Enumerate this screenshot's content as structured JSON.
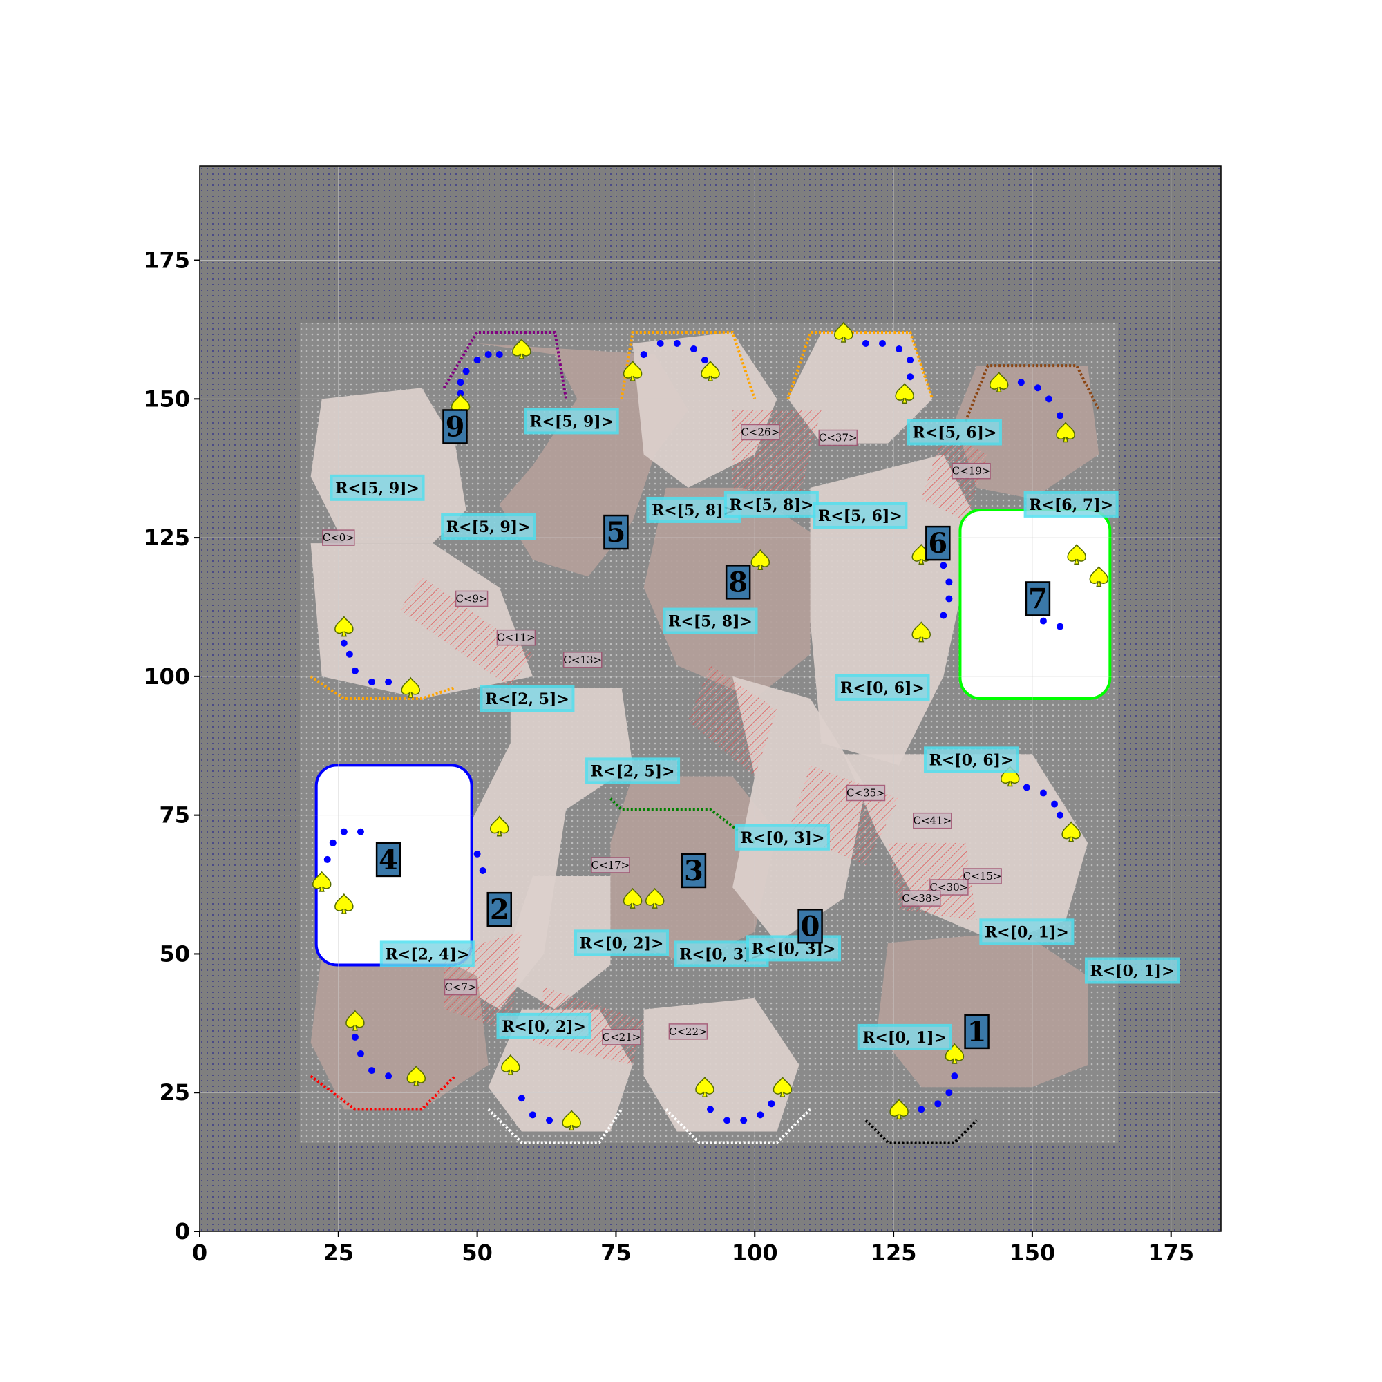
{
  "chart_data": {
    "type": "scatter",
    "title": "",
    "xlabel": "",
    "ylabel": "",
    "xlim": [
      0,
      184
    ],
    "ylim": [
      0,
      192
    ],
    "x_ticks": [
      "0",
      "25",
      "50",
      "75",
      "100",
      "125",
      "150",
      "175"
    ],
    "y_ticks": [
      "0",
      "25",
      "50",
      "75",
      "100",
      "125",
      "150",
      "175"
    ],
    "grid": true,
    "colors": {
      "background": "#7f7f7f",
      "floor": "#b4a09a",
      "floor_light": "#dcd0cc",
      "walkable": "#ffffff",
      "corridor_hatch": "#e05050",
      "label_box": "#86d8e6",
      "number_box": "#3a78a8",
      "marker": "#ffff00",
      "path_dot": "#0000ff",
      "door": "#ff0000"
    },
    "rooms": [
      {
        "id": "0",
        "x": 110,
        "y": 55
      },
      {
        "id": "1",
        "x": 140,
        "y": 36
      },
      {
        "id": "2",
        "x": 54,
        "y": 58
      },
      {
        "id": "3",
        "x": 89,
        "y": 65
      },
      {
        "id": "4",
        "x": 34,
        "y": 67
      },
      {
        "id": "5",
        "x": 75,
        "y": 126
      },
      {
        "id": "6",
        "x": 133,
        "y": 124
      },
      {
        "id": "7",
        "x": 151,
        "y": 114
      },
      {
        "id": "8",
        "x": 97,
        "y": 117
      },
      {
        "id": "9",
        "x": 46,
        "y": 145
      }
    ],
    "region_labels": [
      {
        "text": "R<[5, 9]>",
        "x": 67,
        "y": 146
      },
      {
        "text": "R<[5, 9]>",
        "x": 32,
        "y": 134
      },
      {
        "text": "R<[5, 9]>",
        "x": 52,
        "y": 127
      },
      {
        "text": "R<[5, 6]>",
        "x": 136,
        "y": 144
      },
      {
        "text": "R<[5, 8]>",
        "x": 89,
        "y": 130
      },
      {
        "text": "R<[5, 8]>",
        "x": 103,
        "y": 131
      },
      {
        "text": "R<[5, 6]>",
        "x": 119,
        "y": 129
      },
      {
        "text": "R<[6, 7]>",
        "x": 157,
        "y": 131
      },
      {
        "text": "R<[5, 8]>",
        "x": 92,
        "y": 110
      },
      {
        "text": "R<[2, 5]>",
        "x": 59,
        "y": 96
      },
      {
        "text": "R<[0, 6]>",
        "x": 123,
        "y": 98
      },
      {
        "text": "R<[0, 6]>",
        "x": 139,
        "y": 85
      },
      {
        "text": "R<[2, 5]>",
        "x": 78,
        "y": 83
      },
      {
        "text": "R<[0, 3]>",
        "x": 105,
        "y": 71
      },
      {
        "text": "R<[2, 4]>",
        "x": 41,
        "y": 50
      },
      {
        "text": "R<[0, 2]>",
        "x": 76,
        "y": 52
      },
      {
        "text": "R<[0, 3]>",
        "x": 94,
        "y": 50
      },
      {
        "text": "R<[0, 3]>",
        "x": 107,
        "y": 51
      },
      {
        "text": "R<[0, 1]>",
        "x": 149,
        "y": 54
      },
      {
        "text": "R<[0, 1]>",
        "x": 168,
        "y": 47
      },
      {
        "text": "R<[0, 1]>",
        "x": 127,
        "y": 35
      },
      {
        "text": "R<[0, 2]>",
        "x": 62,
        "y": 37
      }
    ],
    "corridor_labels": [
      {
        "text": "C<0>",
        "x": 25,
        "y": 125
      },
      {
        "text": "C<9>",
        "x": 49,
        "y": 114
      },
      {
        "text": "C<11>",
        "x": 57,
        "y": 107
      },
      {
        "text": "C<13>",
        "x": 69,
        "y": 103
      },
      {
        "text": "C<26>",
        "x": 101,
        "y": 144
      },
      {
        "text": "C<37>",
        "x": 115,
        "y": 143
      },
      {
        "text": "C<19>",
        "x": 139,
        "y": 137
      },
      {
        "text": "C<35>",
        "x": 120,
        "y": 79
      },
      {
        "text": "C<41>",
        "x": 132,
        "y": 74
      },
      {
        "text": "C<15>",
        "x": 141,
        "y": 64
      },
      {
        "text": "C<30>",
        "x": 135,
        "y": 62
      },
      {
        "text": "C<38>",
        "x": 130,
        "y": 60
      },
      {
        "text": "C<7>",
        "x": 47,
        "y": 44
      },
      {
        "text": "C<21>",
        "x": 76,
        "y": 35
      },
      {
        "text": "C<22>",
        "x": 88,
        "y": 36
      },
      {
        "text": "C<17>",
        "x": 74,
        "y": 66
      }
    ],
    "markers": [
      {
        "x": 58,
        "y": 159
      },
      {
        "x": 47,
        "y": 149
      },
      {
        "x": 78,
        "y": 155
      },
      {
        "x": 92,
        "y": 155
      },
      {
        "x": 116,
        "y": 162
      },
      {
        "x": 127,
        "y": 151
      },
      {
        "x": 144,
        "y": 153
      },
      {
        "x": 156,
        "y": 144
      },
      {
        "x": 101,
        "y": 121
      },
      {
        "x": 130,
        "y": 122
      },
      {
        "x": 158,
        "y": 122
      },
      {
        "x": 162,
        "y": 118
      },
      {
        "x": 26,
        "y": 109
      },
      {
        "x": 38,
        "y": 98
      },
      {
        "x": 130,
        "y": 108
      },
      {
        "x": 146,
        "y": 82
      },
      {
        "x": 157,
        "y": 72
      },
      {
        "x": 54,
        "y": 73
      },
      {
        "x": 22,
        "y": 63
      },
      {
        "x": 26,
        "y": 59
      },
      {
        "x": 78,
        "y": 60
      },
      {
        "x": 82,
        "y": 60
      },
      {
        "x": 28,
        "y": 38
      },
      {
        "x": 39,
        "y": 28
      },
      {
        "x": 56,
        "y": 30
      },
      {
        "x": 67,
        "y": 20
      },
      {
        "x": 91,
        "y": 26
      },
      {
        "x": 105,
        "y": 26
      },
      {
        "x": 126,
        "y": 22
      },
      {
        "x": 136,
        "y": 32
      }
    ],
    "path_dots": [
      {
        "x": 54,
        "y": 158
      },
      {
        "x": 52,
        "y": 158
      },
      {
        "x": 50,
        "y": 157
      },
      {
        "x": 48,
        "y": 155
      },
      {
        "x": 47,
        "y": 153
      },
      {
        "x": 47,
        "y": 151
      },
      {
        "x": 80,
        "y": 158
      },
      {
        "x": 83,
        "y": 160
      },
      {
        "x": 86,
        "y": 160
      },
      {
        "x": 89,
        "y": 159
      },
      {
        "x": 91,
        "y": 157
      },
      {
        "x": 120,
        "y": 160
      },
      {
        "x": 123,
        "y": 160
      },
      {
        "x": 126,
        "y": 159
      },
      {
        "x": 128,
        "y": 157
      },
      {
        "x": 128,
        "y": 154
      },
      {
        "x": 148,
        "y": 153
      },
      {
        "x": 151,
        "y": 152
      },
      {
        "x": 153,
        "y": 150
      },
      {
        "x": 155,
        "y": 147
      },
      {
        "x": 26,
        "y": 106
      },
      {
        "x": 27,
        "y": 104
      },
      {
        "x": 28,
        "y": 101
      },
      {
        "x": 31,
        "y": 99
      },
      {
        "x": 34,
        "y": 99
      },
      {
        "x": 134,
        "y": 120
      },
      {
        "x": 135,
        "y": 117
      },
      {
        "x": 135,
        "y": 114
      },
      {
        "x": 134,
        "y": 111
      },
      {
        "x": 152,
        "y": 110
      },
      {
        "x": 155,
        "y": 109
      },
      {
        "x": 149,
        "y": 80
      },
      {
        "x": 152,
        "y": 79
      },
      {
        "x": 154,
        "y": 77
      },
      {
        "x": 155,
        "y": 75
      },
      {
        "x": 23,
        "y": 67
      },
      {
        "x": 24,
        "y": 70
      },
      {
        "x": 26,
        "y": 72
      },
      {
        "x": 29,
        "y": 72
      },
      {
        "x": 51,
        "y": 65
      },
      {
        "x": 50,
        "y": 68
      },
      {
        "x": 28,
        "y": 35
      },
      {
        "x": 29,
        "y": 32
      },
      {
        "x": 31,
        "y": 29
      },
      {
        "x": 34,
        "y": 28
      },
      {
        "x": 58,
        "y": 24
      },
      {
        "x": 60,
        "y": 21
      },
      {
        "x": 63,
        "y": 20
      },
      {
        "x": 92,
        "y": 22
      },
      {
        "x": 95,
        "y": 20
      },
      {
        "x": 98,
        "y": 20
      },
      {
        "x": 101,
        "y": 21
      },
      {
        "x": 103,
        "y": 23
      },
      {
        "x": 130,
        "y": 22
      },
      {
        "x": 133,
        "y": 23
      },
      {
        "x": 135,
        "y": 25
      },
      {
        "x": 136,
        "y": 28
      }
    ]
  }
}
